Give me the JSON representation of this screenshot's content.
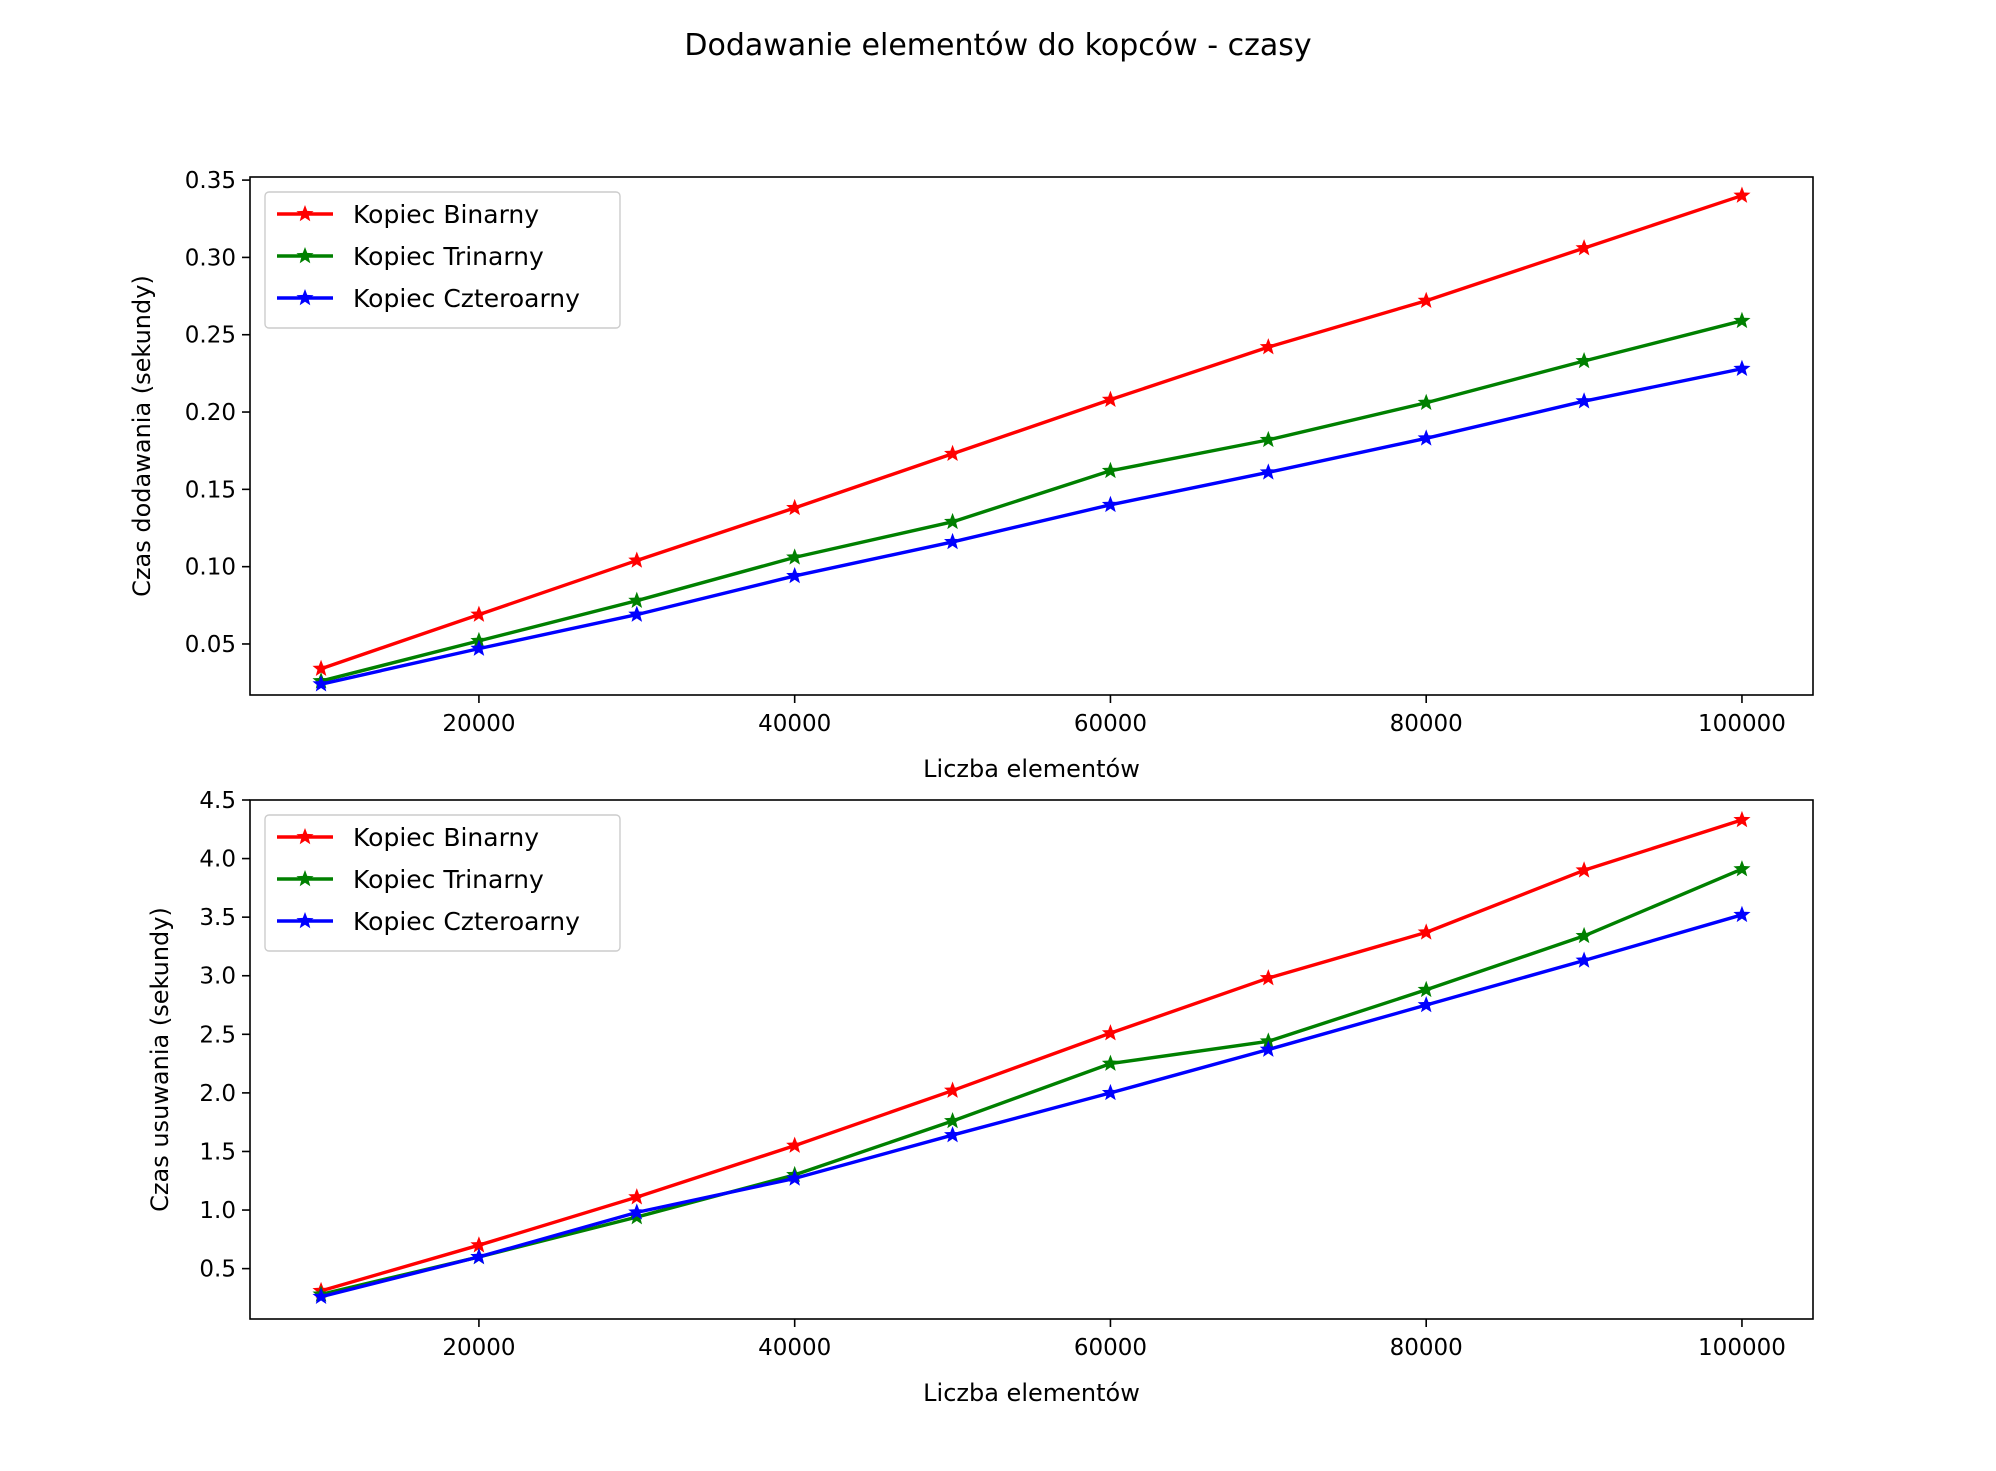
{
  "title": "Dodawanie elementów do kopców - czasy",
  "colors": {
    "binary": "#ff0000",
    "trinary": "#008000",
    "quaternary": "#0000ff"
  },
  "chart_data": [
    {
      "type": "line",
      "xlabel": "Liczba elementów",
      "ylabel": "Czas dodawania (sekundy)",
      "x": [
        10000,
        20000,
        30000,
        40000,
        50000,
        60000,
        70000,
        80000,
        90000,
        100000
      ],
      "xlim": [
        5500,
        104500
      ],
      "ylim": [
        0.017,
        0.352
      ],
      "xticks": [
        20000,
        40000,
        60000,
        80000,
        100000
      ],
      "xtick_labels": [
        "20000",
        "40000",
        "60000",
        "80000",
        "100000"
      ],
      "yticks": [
        0.05,
        0.1,
        0.15,
        0.2,
        0.25,
        0.3,
        0.35
      ],
      "ytick_labels": [
        "0.05",
        "0.10",
        "0.15",
        "0.20",
        "0.25",
        "0.30",
        "0.35"
      ],
      "legend_position": "upper-left",
      "grid": false,
      "marker": "star",
      "series": [
        {
          "name": "Kopiec Binarny",
          "color": "#ff0000",
          "values": [
            0.034,
            0.069,
            0.104,
            0.138,
            0.173,
            0.208,
            0.242,
            0.272,
            0.306,
            0.34
          ]
        },
        {
          "name": "Kopiec Trinarny",
          "color": "#008000",
          "values": [
            0.026,
            0.052,
            0.078,
            0.106,
            0.129,
            0.162,
            0.182,
            0.206,
            0.233,
            0.259
          ]
        },
        {
          "name": "Kopiec Czteroarny",
          "color": "#0000ff",
          "values": [
            0.024,
            0.047,
            0.069,
            0.094,
            0.116,
            0.14,
            0.161,
            0.183,
            0.207,
            0.228
          ]
        }
      ]
    },
    {
      "type": "line",
      "xlabel": "Liczba elementów",
      "ylabel": "Czas usuwania (sekundy)",
      "x": [
        10000,
        20000,
        30000,
        40000,
        50000,
        60000,
        70000,
        80000,
        90000,
        100000
      ],
      "xlim": [
        5500,
        104500
      ],
      "ylim": [
        0.07,
        4.5
      ],
      "xticks": [
        20000,
        40000,
        60000,
        80000,
        100000
      ],
      "xtick_labels": [
        "20000",
        "40000",
        "60000",
        "80000",
        "100000"
      ],
      "yticks": [
        0.5,
        1.0,
        1.5,
        2.0,
        2.5,
        3.0,
        3.5,
        4.0,
        4.5
      ],
      "ytick_labels": [
        "0.5",
        "1.0",
        "1.5",
        "2.0",
        "2.5",
        "3.0",
        "3.5",
        "4.0",
        "4.5"
      ],
      "legend_position": "upper-left",
      "grid": false,
      "marker": "star",
      "series": [
        {
          "name": "Kopiec Binarny",
          "color": "#ff0000",
          "values": [
            0.31,
            0.7,
            1.11,
            1.55,
            2.02,
            2.51,
            2.98,
            3.37,
            3.9,
            4.33
          ]
        },
        {
          "name": "Kopiec Trinarny",
          "color": "#008000",
          "values": [
            0.28,
            0.6,
            0.94,
            1.3,
            1.76,
            2.25,
            2.44,
            2.88,
            3.34,
            3.91
          ]
        },
        {
          "name": "Kopiec Czteroarny",
          "color": "#0000ff",
          "values": [
            0.26,
            0.6,
            0.98,
            1.27,
            1.64,
            2.0,
            2.37,
            2.75,
            3.13,
            3.52
          ]
        }
      ]
    }
  ]
}
